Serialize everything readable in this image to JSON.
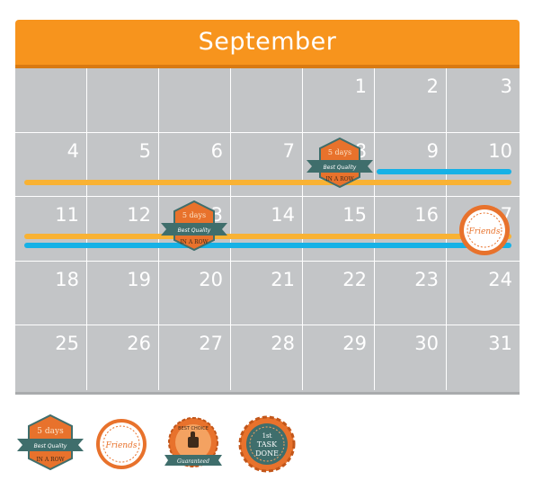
{
  "calendar": {
    "month": "September",
    "rows": [
      [
        "",
        "",
        "",
        "",
        "1",
        "2",
        "3"
      ],
      [
        "4",
        "5",
        "6",
        "7",
        "8",
        "9",
        "10"
      ],
      [
        "11",
        "12",
        "13",
        "14",
        "15",
        "16",
        "17"
      ],
      [
        "18",
        "19",
        "20",
        "21",
        "22",
        "23",
        "24"
      ],
      [
        "25",
        "26",
        "27",
        "28",
        "29",
        "30",
        "31"
      ]
    ]
  },
  "colors": {
    "header": "#f7941d",
    "grid": "#c3c5c7",
    "streak_orange": "#f9b233",
    "streak_blue": "#16b1e6",
    "badge_orange": "#e8722c",
    "badge_teal": "#3f6e6c"
  },
  "badges": {
    "five_days": {
      "line1": "5 days",
      "line2": "Best Quality",
      "line3": "IN A ROW"
    },
    "friends": {
      "line1": "Friends"
    },
    "best_choice": {
      "line1": "BEST CHOICE",
      "line2": "Guaranteed"
    },
    "task_done": {
      "line1": "1st",
      "line2": "TASK",
      "line3": "DONE"
    }
  }
}
